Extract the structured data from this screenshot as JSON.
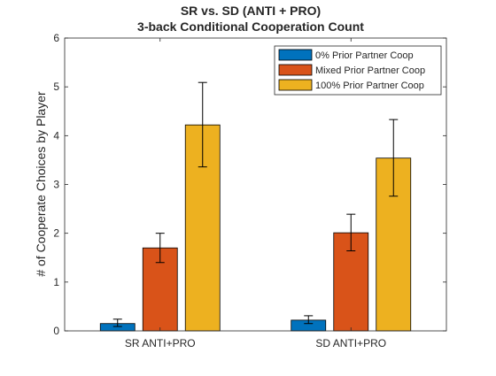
{
  "chart_data": {
    "type": "bar",
    "title": "SR vs. SD (ANTI + PRO)",
    "subtitle": "3-back Conditional Cooperation Count",
    "xlabel": "",
    "ylabel": "# of Cooperate Choices by Player",
    "categories": [
      "SR ANTI+PRO",
      "SD ANTI+PRO"
    ],
    "ylim": [
      0,
      6
    ],
    "yticks": [
      0,
      1,
      2,
      3,
      4,
      5,
      6
    ],
    "grid": false,
    "legend_position": "top-right",
    "series": [
      {
        "name": "0% Prior Partner Coop",
        "color": "#0072BD",
        "values": [
          0.15,
          0.22
        ],
        "err_low": [
          0.06,
          0.07
        ],
        "err_high": [
          0.09,
          0.09
        ]
      },
      {
        "name": "Mixed Prior Partner Coop",
        "color": "#D95319",
        "values": [
          1.7,
          2.01
        ],
        "err_low": [
          0.3,
          0.37
        ],
        "err_high": [
          0.3,
          0.38
        ]
      },
      {
        "name": "100% Prior Partner Coop",
        "color": "#EDB120",
        "values": [
          4.22,
          3.54
        ],
        "err_low": [
          0.86,
          0.78
        ],
        "err_high": [
          0.87,
          0.79
        ]
      }
    ]
  }
}
